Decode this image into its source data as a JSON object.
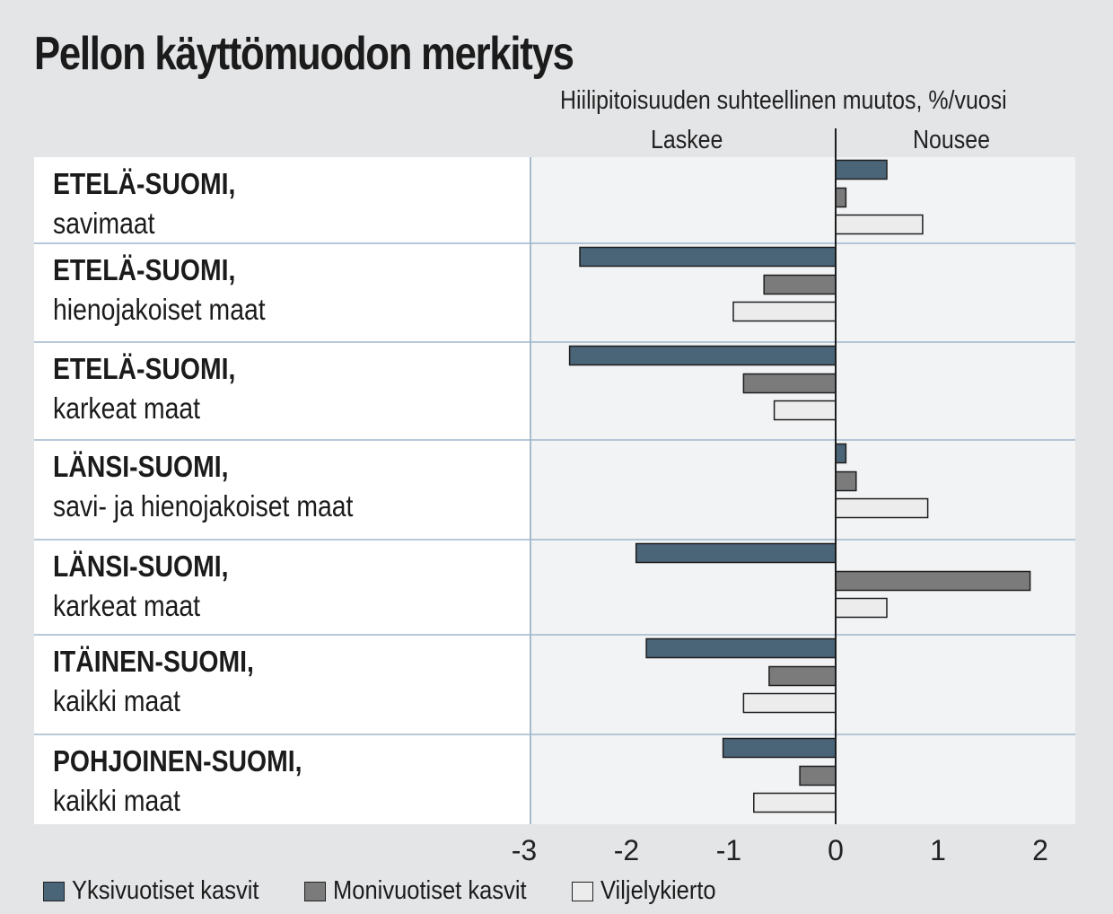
{
  "title": "Pellon käyttömuodon merkitys",
  "chart_data": {
    "type": "bar",
    "orientation": "horizontal",
    "title": "Pellon käyttömuodon merkitys",
    "xlabel": "Hiilipitoisuuden suhteellinen muutos, %/vuosi",
    "direction_labels": {
      "negative": "Laskee",
      "positive": "Nousee"
    },
    "xlim": [
      -3,
      2.35
    ],
    "xticks": [
      -3,
      -2,
      -1,
      0,
      1,
      2
    ],
    "grid": false,
    "legend_position": "bottom",
    "categories": [
      {
        "region": "ETELÄ-SUOMI,",
        "soil": "savimaat"
      },
      {
        "region": "ETELÄ-SUOMI,",
        "soil": "hienojakoiset maat"
      },
      {
        "region": "ETELÄ-SUOMI,",
        "soil": "karkeat maat"
      },
      {
        "region": "LÄNSI-SUOMI,",
        "soil": "savi- ja hienojakoiset maat"
      },
      {
        "region": "LÄNSI-SUOMI,",
        "soil": "karkeat maat"
      },
      {
        "region": "ITÄINEN-SUOMI,",
        "soil": "kaikki maat"
      },
      {
        "region": "POHJOINEN-SUOMI,",
        "soil": "kaikki maat"
      }
    ],
    "series": [
      {
        "name": "Yksivuotiset kasvit",
        "color": "#4a6478",
        "values": [
          0.5,
          -2.5,
          -2.6,
          0.1,
          -1.95,
          -1.85,
          -1.1
        ]
      },
      {
        "name": "Monivuotiset kasvit",
        "color": "#7b7b7b",
        "values": [
          0.1,
          -0.7,
          -0.9,
          0.2,
          1.9,
          -0.65,
          -0.35
        ]
      },
      {
        "name": "Viljelykierto",
        "color": "#ececec",
        "values": [
          0.85,
          -1.0,
          -0.6,
          0.9,
          0.5,
          -0.9,
          -0.8
        ]
      }
    ]
  }
}
